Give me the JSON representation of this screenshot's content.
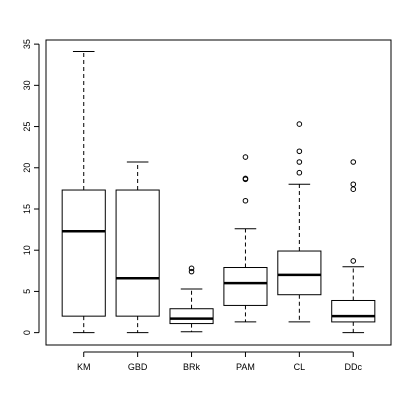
{
  "chart_data": {
    "type": "boxplot",
    "title": "",
    "xlabel": "",
    "ylabel": "",
    "ylim": [
      -1.5,
      35.5
    ],
    "yticks": [
      0,
      5,
      10,
      15,
      20,
      25,
      30,
      35
    ],
    "categories": [
      "KM",
      "GBD",
      "BRk",
      "PAM",
      "CL",
      "DDc"
    ],
    "boxes": [
      {
        "name": "KM",
        "whisker_low": 0.0,
        "q1": 2.0,
        "median": 12.3,
        "q3": 17.3,
        "whisker_high": 34.1,
        "outliers": []
      },
      {
        "name": "GBD",
        "whisker_low": 0.0,
        "q1": 2.0,
        "median": 6.6,
        "q3": 17.3,
        "whisker_high": 20.7,
        "outliers": []
      },
      {
        "name": "BRk",
        "whisker_low": 0.1,
        "q1": 1.1,
        "median": 1.7,
        "q3": 2.9,
        "whisker_high": 5.3,
        "outliers": [
          7.4,
          7.8
        ]
      },
      {
        "name": "PAM",
        "whisker_low": 1.3,
        "q1": 3.3,
        "median": 6.0,
        "q3": 7.9,
        "whisker_high": 12.6,
        "outliers": [
          16.0,
          18.6,
          18.7,
          21.3
        ]
      },
      {
        "name": "CL",
        "whisker_low": 1.3,
        "q1": 4.6,
        "median": 7.0,
        "q3": 9.9,
        "whisker_high": 18.0,
        "outliers": [
          19.4,
          20.7,
          22.0,
          25.3
        ]
      },
      {
        "name": "DDc",
        "whisker_low": 0.0,
        "q1": 1.3,
        "median": 2.0,
        "q3": 3.9,
        "whisker_high": 8.0,
        "outliers": [
          8.7,
          17.4,
          18.0,
          20.7
        ]
      }
    ],
    "grid": false,
    "legend": "none"
  }
}
